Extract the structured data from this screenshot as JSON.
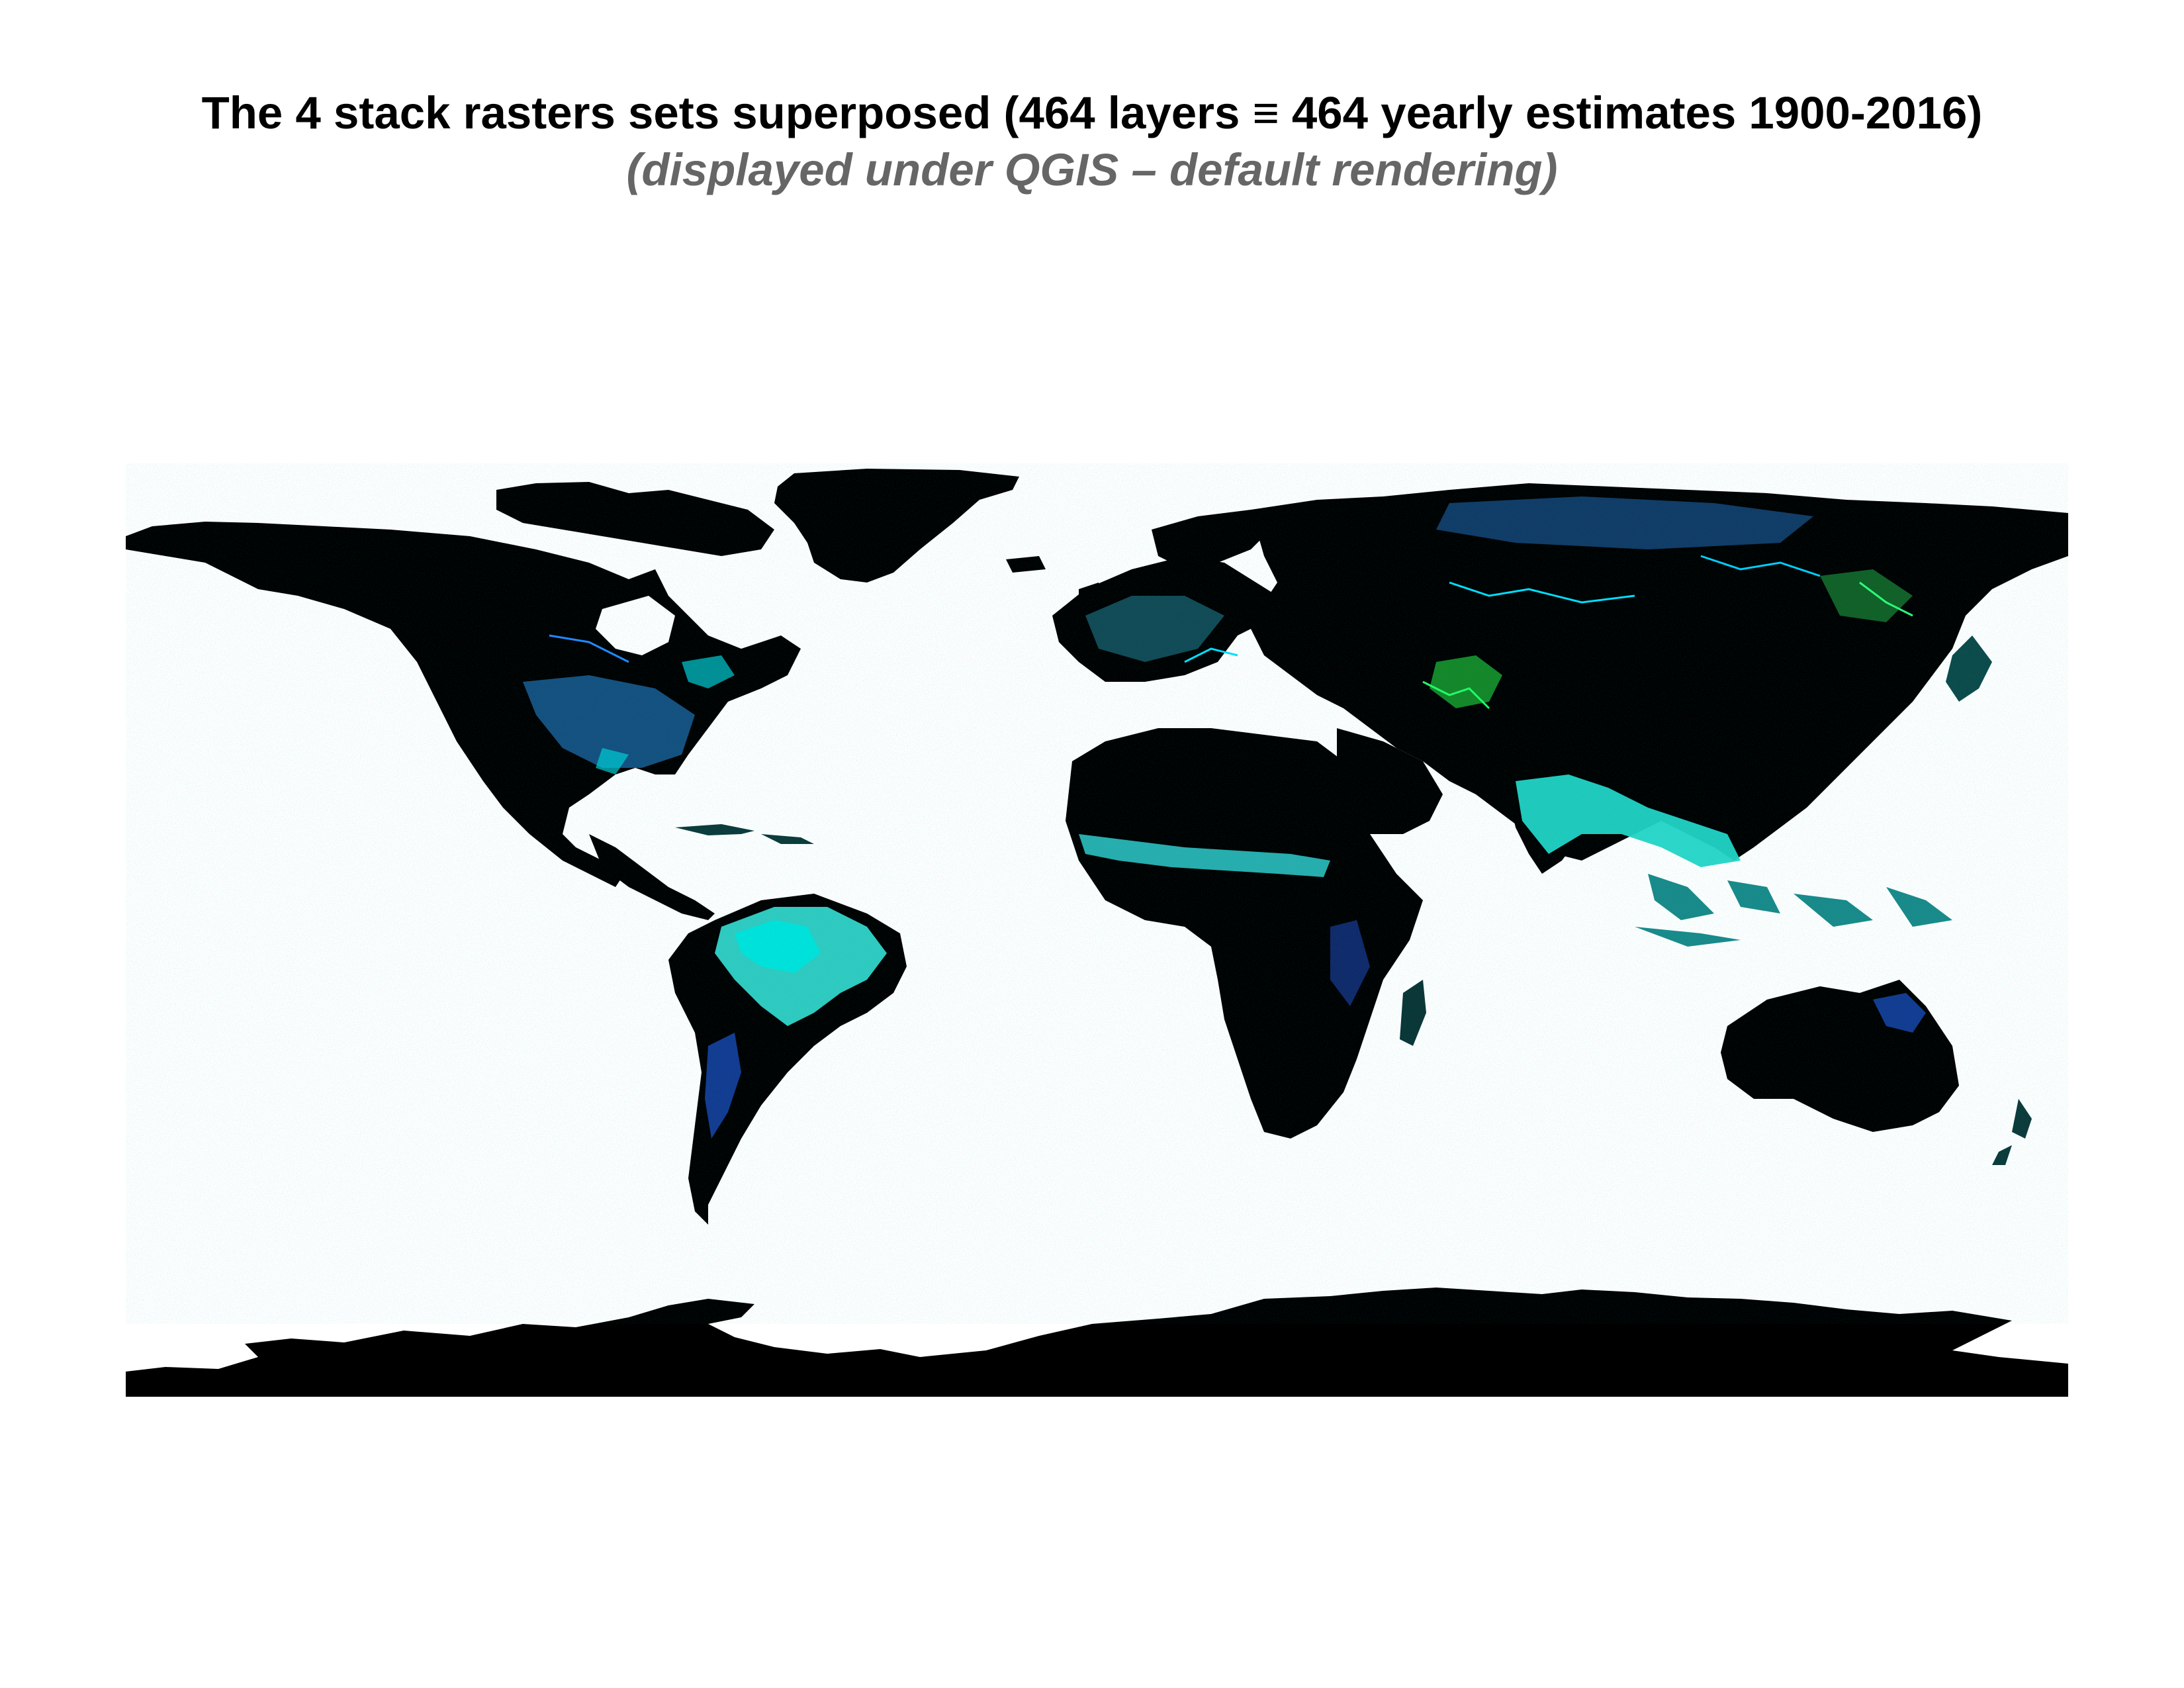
{
  "title": "The 4 stack rasters sets superposed (464 layers ≡ 464 yearly estimates 1900-2016)",
  "subtitle": "(displayed under QGIS – default rendering)",
  "map": {
    "projection": "equirectangular",
    "background": "#ffffff",
    "land_base_color": "#000000",
    "highlight_colors": {
      "cyan": "#00e5e5",
      "light_cyan": "#55d8d0",
      "blue": "#1a5cff",
      "green": "#22dd44",
      "teal": "#0f4a4a"
    }
  }
}
